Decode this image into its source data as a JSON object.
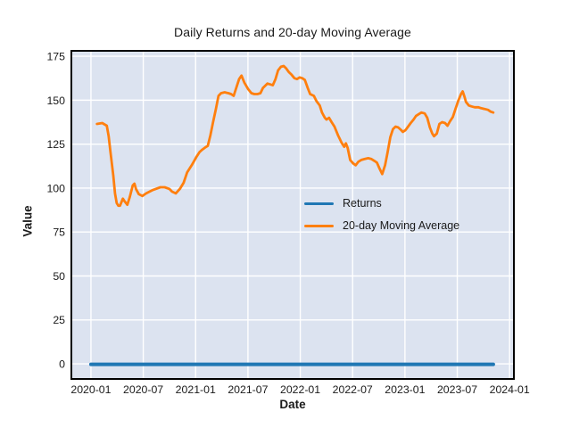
{
  "title": "Daily Returns and 20-day Moving Average",
  "colors": {
    "figure_bg": "#ffffff",
    "axes_bg": "#dce3f0",
    "grid": "#ffffff",
    "frame": "#000000",
    "text": "#1a1a1a",
    "returns_line": "#1f77b4",
    "ma_line": "#ff7f0e"
  },
  "chart_data": {
    "type": "line",
    "title": "Daily Returns and 20-day Moving Average",
    "xlabel": "Date",
    "ylabel": "Value",
    "grid": true,
    "background": "#dce3f0",
    "ylim": [
      -8.6,
      178.1
    ],
    "y_ticks": [
      0,
      25,
      50,
      75,
      100,
      125,
      150,
      175
    ],
    "xlim_dates": [
      "2019-10-24",
      "2024-01-16"
    ],
    "x_tick_interval_months": 6,
    "x_tick_labels": [
      "2020-01",
      "2020-07",
      "2021-01",
      "2021-07",
      "2022-01",
      "2022-07",
      "2023-01",
      "2023-07",
      "2024-01"
    ],
    "legend": {
      "position": "center-right",
      "frame": false,
      "entries": [
        {
          "label": "Returns",
          "color": "#1f77b4"
        },
        {
          "label": "20-day Moving Average",
          "color": "#ff7f0e"
        }
      ]
    },
    "series": [
      {
        "name": "Returns",
        "color": "#1f77b4",
        "style": "flat-noise",
        "value": -0.3,
        "start": "2020-01-01",
        "end": "2023-11-05",
        "note": "daily returns hover near 0 for the whole range"
      },
      {
        "name": "20-day Moving Average",
        "color": "#ff7f0e",
        "points": [
          [
            "2020-01-22",
            136.5
          ],
          [
            "2020-02-10",
            137
          ],
          [
            "2020-02-26",
            135.5
          ],
          [
            "2020-03-02",
            129.5
          ],
          [
            "2020-03-08",
            121
          ],
          [
            "2020-03-18",
            107
          ],
          [
            "2020-03-24",
            97
          ],
          [
            "2020-03-30",
            91.5
          ],
          [
            "2020-04-05",
            90
          ],
          [
            "2020-04-11",
            90
          ],
          [
            "2020-04-21",
            94
          ],
          [
            "2020-04-27",
            92.5
          ],
          [
            "2020-05-06",
            90.5
          ],
          [
            "2020-05-15",
            95
          ],
          [
            "2020-05-25",
            101.5
          ],
          [
            "2020-05-31",
            102.5
          ],
          [
            "2020-06-06",
            99.5
          ],
          [
            "2020-06-16",
            96.5
          ],
          [
            "2020-06-28",
            95.5
          ],
          [
            "2020-07-11",
            97
          ],
          [
            "2020-07-23",
            98
          ],
          [
            "2020-08-05",
            99
          ],
          [
            "2020-08-14",
            99.5
          ],
          [
            "2020-08-30",
            100.5
          ],
          [
            "2020-09-15",
            100.5
          ],
          [
            "2020-10-01",
            99.5
          ],
          [
            "2020-10-10",
            98
          ],
          [
            "2020-10-23",
            97
          ],
          [
            "2020-11-01",
            98.5
          ],
          [
            "2020-11-07",
            99.5
          ],
          [
            "2020-11-20",
            103
          ],
          [
            "2020-12-02",
            109
          ],
          [
            "2020-12-18",
            113
          ],
          [
            "2021-01-03",
            117.5
          ],
          [
            "2021-01-15",
            120.5
          ],
          [
            "2021-01-25",
            122
          ],
          [
            "2021-02-03",
            123
          ],
          [
            "2021-02-13",
            124
          ],
          [
            "2021-02-22",
            130
          ],
          [
            "2021-03-01",
            137.5
          ],
          [
            "2021-03-11",
            145
          ],
          [
            "2021-03-20",
            152.5
          ],
          [
            "2021-03-29",
            154
          ],
          [
            "2021-04-11",
            154.5
          ],
          [
            "2021-04-24",
            154
          ],
          [
            "2021-05-03",
            153.5
          ],
          [
            "2021-05-12",
            152.5
          ],
          [
            "2021-05-21",
            157
          ],
          [
            "2021-05-31",
            162
          ],
          [
            "2021-06-09",
            164
          ],
          [
            "2021-06-19",
            160
          ],
          [
            "2021-07-01",
            156.5
          ],
          [
            "2021-07-13",
            154
          ],
          [
            "2021-07-23",
            153.5
          ],
          [
            "2021-08-04",
            153.5
          ],
          [
            "2021-08-14",
            154
          ],
          [
            "2021-08-23",
            157
          ],
          [
            "2021-09-08",
            159.5
          ],
          [
            "2021-09-17",
            159
          ],
          [
            "2021-09-27",
            158.5
          ],
          [
            "2021-10-06",
            162
          ],
          [
            "2021-10-15",
            167
          ],
          [
            "2021-10-25",
            169
          ],
          [
            "2021-11-04",
            169.5
          ],
          [
            "2021-11-13",
            168
          ],
          [
            "2021-11-22",
            166
          ],
          [
            "2021-12-01",
            164.5
          ],
          [
            "2021-12-11",
            162.5
          ],
          [
            "2021-12-20",
            162
          ],
          [
            "2021-12-29",
            163
          ],
          [
            "2022-01-08",
            162.5
          ],
          [
            "2022-01-17",
            161.5
          ],
          [
            "2022-01-27",
            157
          ],
          [
            "2022-02-05",
            153.5
          ],
          [
            "2022-02-18",
            152.5
          ],
          [
            "2022-02-27",
            149.5
          ],
          [
            "2022-03-08",
            147
          ],
          [
            "2022-03-16",
            143
          ],
          [
            "2022-03-26",
            140
          ],
          [
            "2022-04-01",
            139
          ],
          [
            "2022-04-10",
            140
          ],
          [
            "2022-04-19",
            137.5
          ],
          [
            "2022-04-29",
            135
          ],
          [
            "2022-05-11",
            130
          ],
          [
            "2022-05-23",
            126
          ],
          [
            "2022-06-02",
            123.5
          ],
          [
            "2022-06-08",
            125.5
          ],
          [
            "2022-06-14",
            123
          ],
          [
            "2022-06-23",
            116
          ],
          [
            "2022-07-03",
            114
          ],
          [
            "2022-07-12",
            113
          ],
          [
            "2022-07-21",
            115
          ],
          [
            "2022-07-31",
            116
          ],
          [
            "2022-08-12",
            116.5
          ],
          [
            "2022-08-25",
            117
          ],
          [
            "2022-09-06",
            116.5
          ],
          [
            "2022-09-16",
            115.5
          ],
          [
            "2022-09-25",
            114.5
          ],
          [
            "2022-10-04",
            111
          ],
          [
            "2022-10-13",
            108
          ],
          [
            "2022-10-23",
            113
          ],
          [
            "2022-11-01",
            120
          ],
          [
            "2022-11-11",
            129
          ],
          [
            "2022-11-20",
            133.5
          ],
          [
            "2022-11-29",
            135
          ],
          [
            "2022-12-08",
            134.5
          ],
          [
            "2022-12-18",
            133
          ],
          [
            "2022-12-24",
            132
          ],
          [
            "2023-01-03",
            133
          ],
          [
            "2023-01-12",
            135
          ],
          [
            "2023-01-21",
            137
          ],
          [
            "2023-01-31",
            139
          ],
          [
            "2023-02-09",
            141
          ],
          [
            "2023-02-18",
            142
          ],
          [
            "2023-02-28",
            143
          ],
          [
            "2023-03-09",
            142.5
          ],
          [
            "2023-03-18",
            140
          ],
          [
            "2023-03-27",
            134.5
          ],
          [
            "2023-04-05",
            131
          ],
          [
            "2023-04-11",
            129.5
          ],
          [
            "2023-04-21",
            131
          ],
          [
            "2023-04-30",
            136.5
          ],
          [
            "2023-05-09",
            137.5
          ],
          [
            "2023-05-19",
            137
          ],
          [
            "2023-05-28",
            135.5
          ],
          [
            "2023-06-06",
            138
          ],
          [
            "2023-06-16",
            140.5
          ],
          [
            "2023-06-25",
            145
          ],
          [
            "2023-07-04",
            149.5
          ],
          [
            "2023-07-14",
            153.5
          ],
          [
            "2023-07-20",
            155
          ],
          [
            "2023-07-26",
            152
          ],
          [
            "2023-08-01",
            149
          ],
          [
            "2023-08-11",
            147
          ],
          [
            "2023-08-20",
            146.5
          ],
          [
            "2023-09-01",
            146
          ],
          [
            "2023-09-14",
            146
          ],
          [
            "2023-09-23",
            145.5
          ],
          [
            "2023-10-05",
            145
          ],
          [
            "2023-10-17",
            144.5
          ],
          [
            "2023-10-26",
            143.5
          ],
          [
            "2023-11-05",
            143
          ]
        ]
      }
    ]
  }
}
